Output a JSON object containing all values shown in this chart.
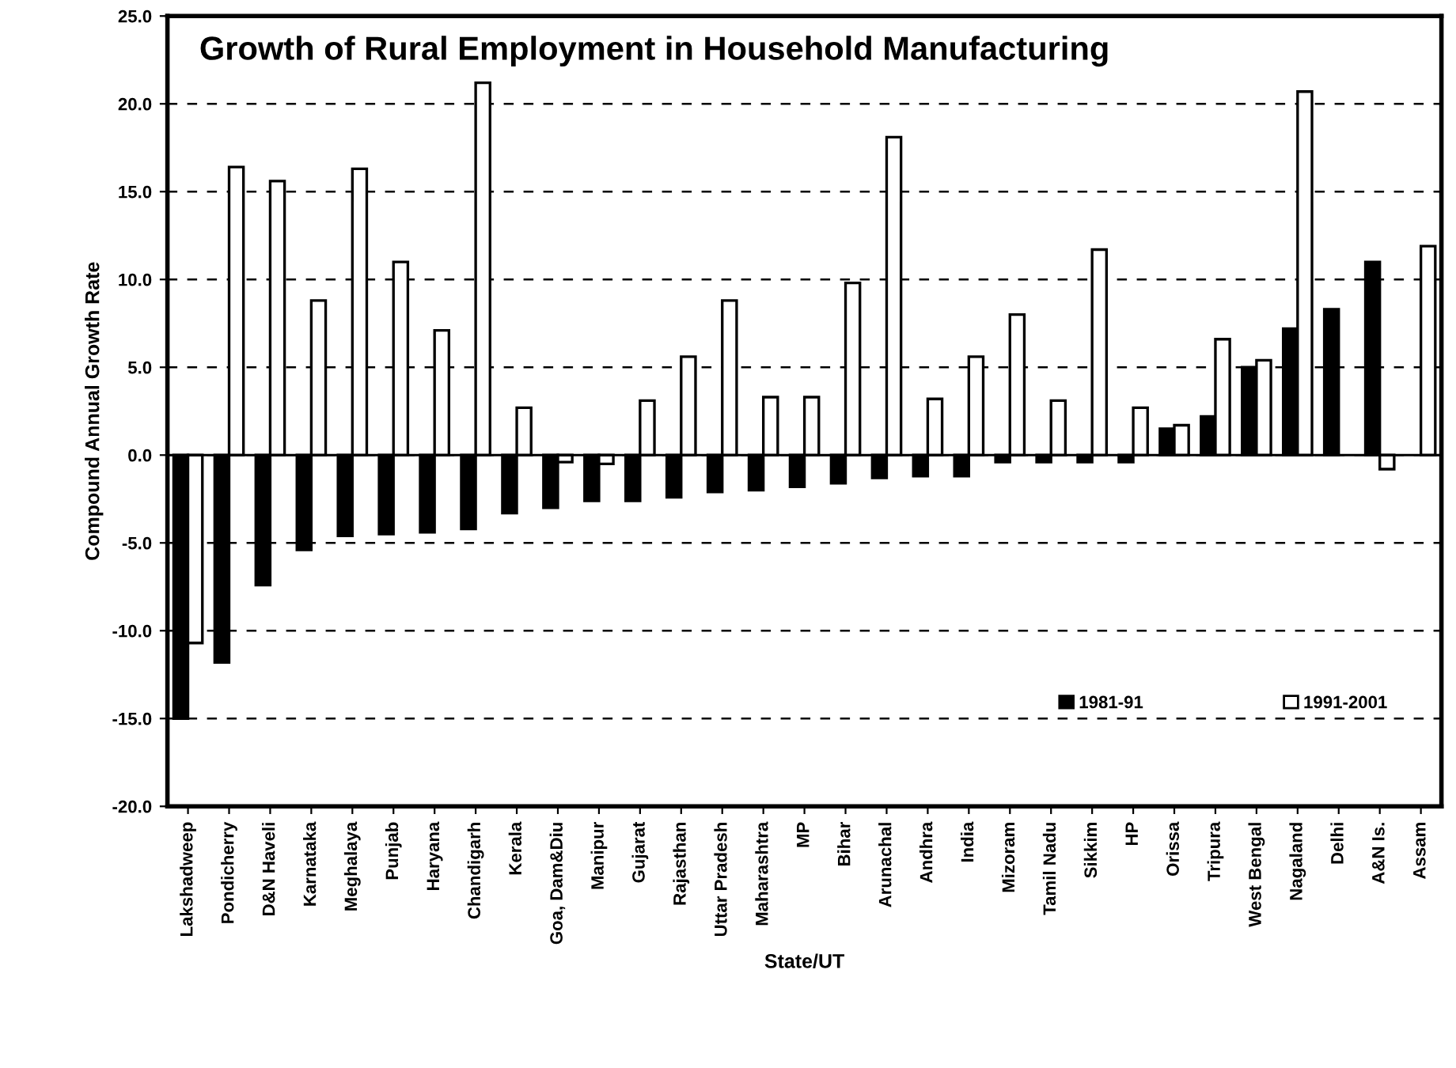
{
  "chart_data": {
    "type": "bar",
    "title": "Growth of Rural Employment in Household Manufacturing",
    "xlabel": "State/UT",
    "ylabel": "Compound Annual Growth Rate",
    "categories": [
      "Lakshadweep",
      "Pondicherry",
      "D&N Haveli",
      "Karnataka",
      "Meghalaya",
      "Punjab",
      "Haryana",
      "Chandigarh",
      "Kerala",
      "Goa, Dam&Diu",
      "Manipur",
      "Gujarat",
      "Rajasthan",
      "Uttar Pradesh",
      "Maharashtra",
      "MP",
      "Bihar",
      "Arunachal",
      "Andhra",
      "India",
      "Mizoram",
      "Tamil Nadu",
      "Sikkim",
      "HP",
      "Orissa",
      "Tripura",
      "West Bengal",
      "Nagaland",
      "Delhi",
      "A&N Is.",
      "Assam"
    ],
    "series": [
      {
        "name": "1981-91",
        "color": "#000000",
        "values": [
          -15.0,
          -11.8,
          -7.4,
          -5.4,
          -4.6,
          -4.5,
          -4.4,
          -4.2,
          -3.3,
          -3.0,
          -2.6,
          -2.6,
          -2.4,
          -2.1,
          -2.0,
          -1.8,
          -1.6,
          -1.3,
          -1.2,
          -1.2,
          -0.4,
          -0.4,
          -0.4,
          -0.4,
          1.5,
          2.2,
          5.0,
          7.2,
          8.3,
          11.0,
          null
        ]
      },
      {
        "name": "1991-2001",
        "color": "#ffffff",
        "values": [
          -10.7,
          16.4,
          15.6,
          8.8,
          16.3,
          11.0,
          7.1,
          21.2,
          2.7,
          -0.4,
          -0.5,
          3.1,
          5.6,
          8.8,
          3.3,
          3.3,
          9.8,
          18.1,
          3.2,
          5.6,
          8.0,
          3.1,
          11.7,
          2.7,
          1.7,
          6.6,
          5.4,
          20.7,
          null,
          -0.8,
          11.9
        ]
      }
    ],
    "ylim": [
      -20,
      25
    ],
    "yticks": [
      {
        "value": -20,
        "label": "-20.0"
      },
      {
        "value": -15,
        "label": "-15.0"
      },
      {
        "value": -10,
        "label": "-10.0"
      },
      {
        "value": -5,
        "label": "-5.0"
      },
      {
        "value": 0,
        "label": "0.0"
      },
      {
        "value": 5,
        "label": "5.0"
      },
      {
        "value": 10,
        "label": "10.0"
      },
      {
        "value": 15,
        "label": "15.0"
      },
      {
        "value": 20,
        "label": "20.0"
      },
      {
        "value": 25,
        "label": "25.0"
      }
    ],
    "grid": "y",
    "legend": "bottom right"
  }
}
